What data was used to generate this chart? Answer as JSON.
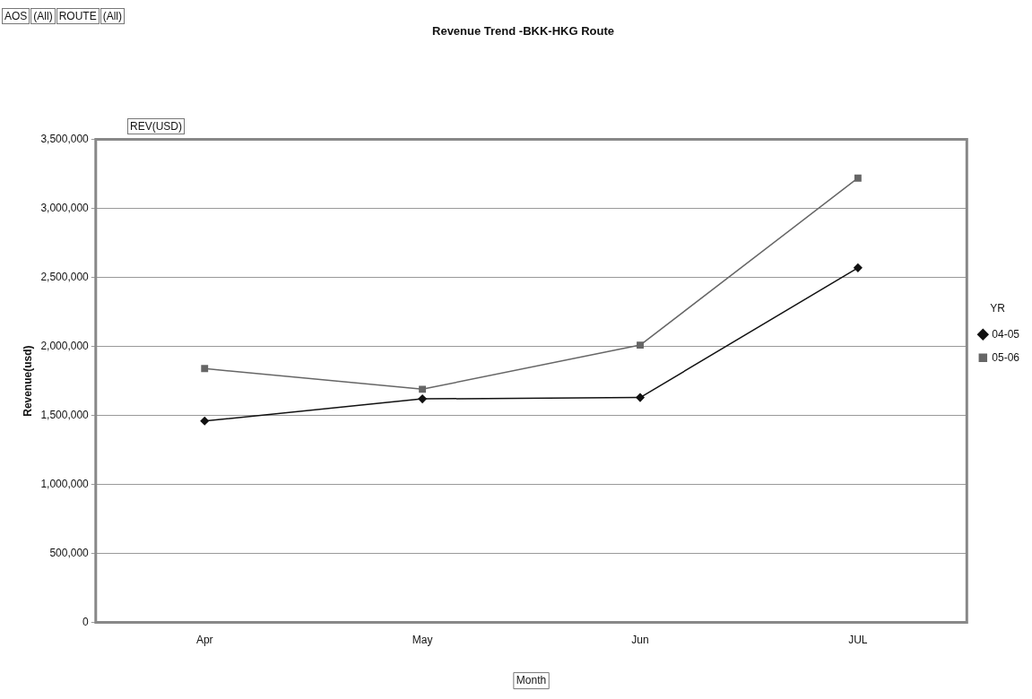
{
  "chart_data": {
    "type": "line",
    "title": "Revenue Trend -BKK-HKG Route",
    "xlabel": "Month",
    "ylabel": "Revenue(usd)",
    "legend_title": "YR",
    "legend": "right",
    "annotations": [
      "AOS",
      "(All)",
      "ROUTE",
      "(All)",
      "REV(USD)"
    ],
    "categories": [
      "Apr",
      "May",
      "Jun",
      "JUL"
    ],
    "series": [
      {
        "name": "04-05",
        "color": "#111111",
        "marker": "diamond",
        "values": [
          1460000,
          1620000,
          1630000,
          2570000
        ]
      },
      {
        "name": "05-06",
        "color": "#666666",
        "marker": "square",
        "values": [
          1840000,
          1690000,
          2010000,
          3220000
        ]
      }
    ],
    "ylim": [
      0,
      3500000
    ],
    "yticks": [
      0,
      {
        "value": 500000,
        "label": "500,000"
      },
      {
        "value": 1000000,
        "label": "1,000,000"
      },
      {
        "value": 1500000,
        "label": "1,500,000"
      },
      {
        "value": 2000000,
        "label": "2,000,000"
      },
      {
        "value": 2500000,
        "label": "2,500,000"
      },
      {
        "value": 3000000,
        "label": "3,000,000"
      },
      {
        "value": 3500000,
        "label": "3,500,000"
      }
    ],
    "grid": "y",
    "line_style": "solid"
  }
}
